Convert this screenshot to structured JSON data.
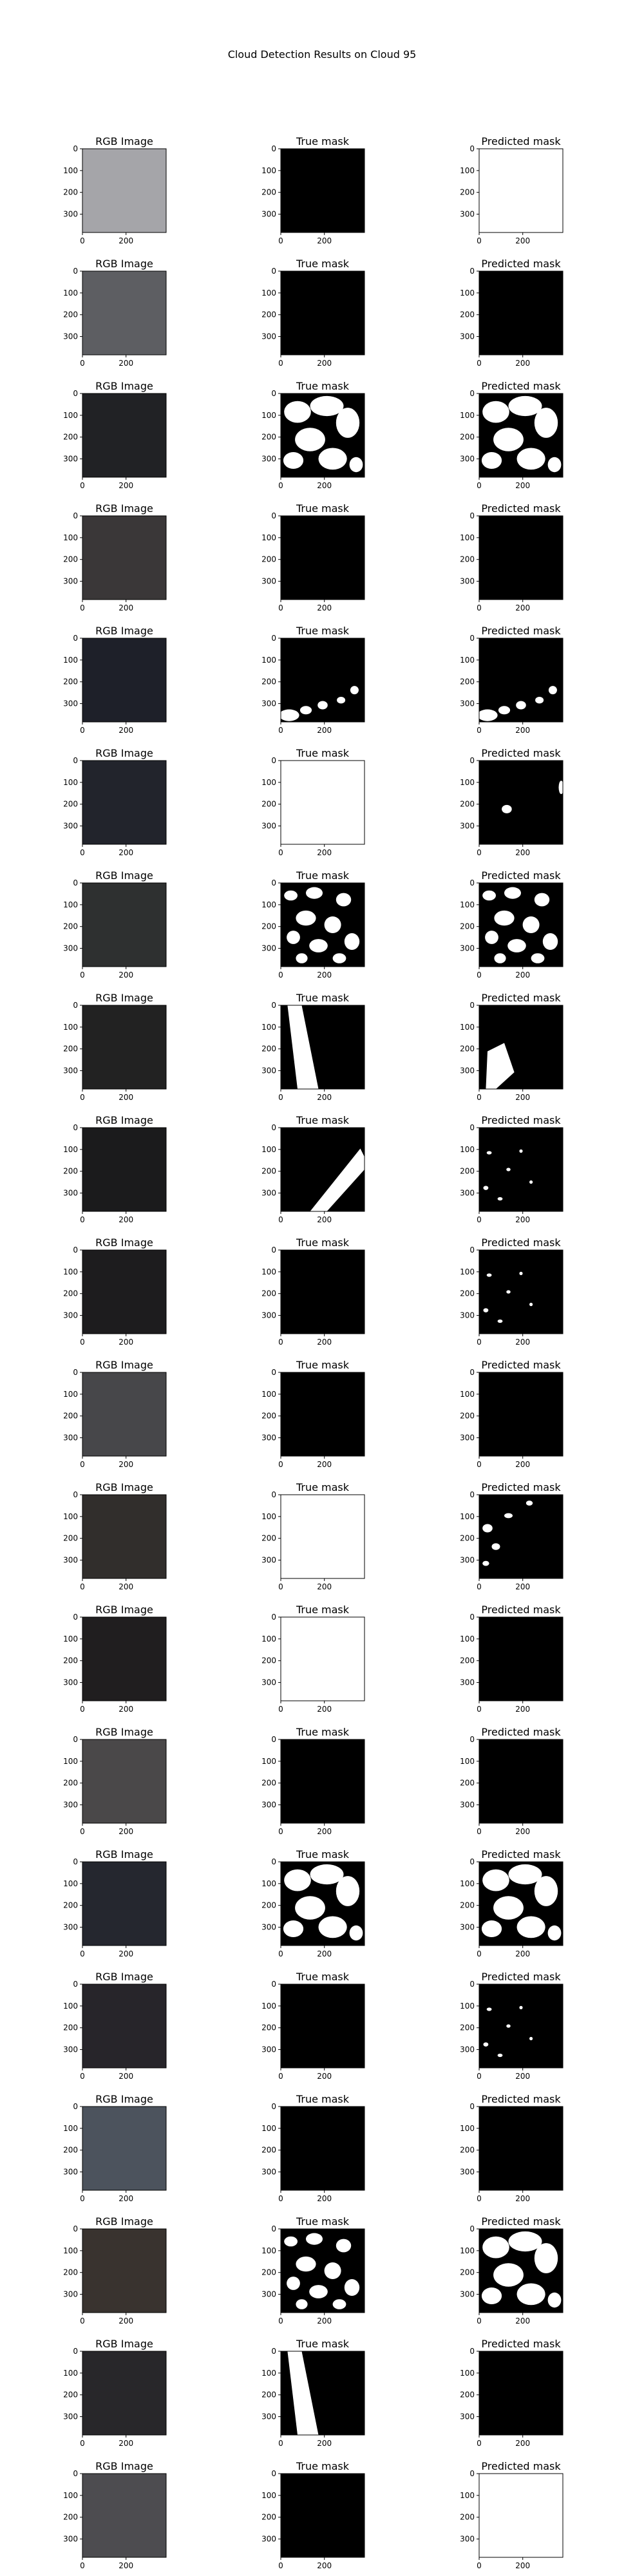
{
  "figure": {
    "title": "Cloud Detection Results on Cloud 95",
    "column_titles": [
      "RGB Image",
      "True mask",
      "Predicted mask"
    ]
  },
  "chart_data": {
    "type": "image-grid",
    "title": "Cloud Detection Results on Cloud 95",
    "columns": [
      "RGB Image",
      "True mask",
      "Predicted mask"
    ],
    "x_ticks": [
      0,
      200
    ],
    "y_ticks": [
      0,
      100,
      200,
      300
    ],
    "image_extent": [
      0,
      384
    ],
    "mask_colors": {
      "cloud": "#ffffff",
      "clear": "#000000"
    },
    "rows": [
      {
        "rgb": "#a5a5a9",
        "true": "none",
        "pred": "full"
      },
      {
        "rgb": "#5d5e62",
        "true": "none",
        "pred": "none"
      },
      {
        "rgb": "#212225",
        "true": "large-blobs",
        "pred": "large-blobs"
      },
      {
        "rgb": "#3a3738",
        "true": "none",
        "pred": "none"
      },
      {
        "rgb": "#1e2029",
        "true": "bottom-patches",
        "pred": "bottom-patches"
      },
      {
        "rgb": "#22242c",
        "true": "mostly-full",
        "pred": "speck"
      },
      {
        "rgb": "#2e3030",
        "true": "scattered-blobs",
        "pred": "scattered-blobs"
      },
      {
        "rgb": "#222222",
        "true": "left-diagonal",
        "pred": "left-diagonal-partial"
      },
      {
        "rgb": "#1b1b1c",
        "true": "diagonal-band",
        "pred": "small-spots"
      },
      {
        "rgb": "#1d1c1e",
        "true": "none",
        "pred": "small-spots"
      },
      {
        "rgb": "#47474a",
        "true": "none",
        "pred": "none"
      },
      {
        "rgb": "#312e2c",
        "true": "mostly-full",
        "pred": "left-spots"
      },
      {
        "rgb": "#201e1f",
        "true": "mostly-full",
        "pred": "none"
      },
      {
        "rgb": "#4a4849",
        "true": "none",
        "pred": "none"
      },
      {
        "rgb": "#25272f",
        "true": "large-blobs",
        "pred": "large-blobs"
      },
      {
        "rgb": "#27252a",
        "true": "none",
        "pred": "small-spots"
      },
      {
        "rgb": "#4c535d",
        "true": "none",
        "pred": "none"
      },
      {
        "rgb": "#39332f",
        "true": "scattered-blobs",
        "pred": "large-blobs"
      },
      {
        "rgb": "#28272a",
        "true": "left-diagonal",
        "pred": "none"
      },
      {
        "rgb": "#4d4c50",
        "true": "none",
        "pred": "mostly-full"
      }
    ]
  }
}
